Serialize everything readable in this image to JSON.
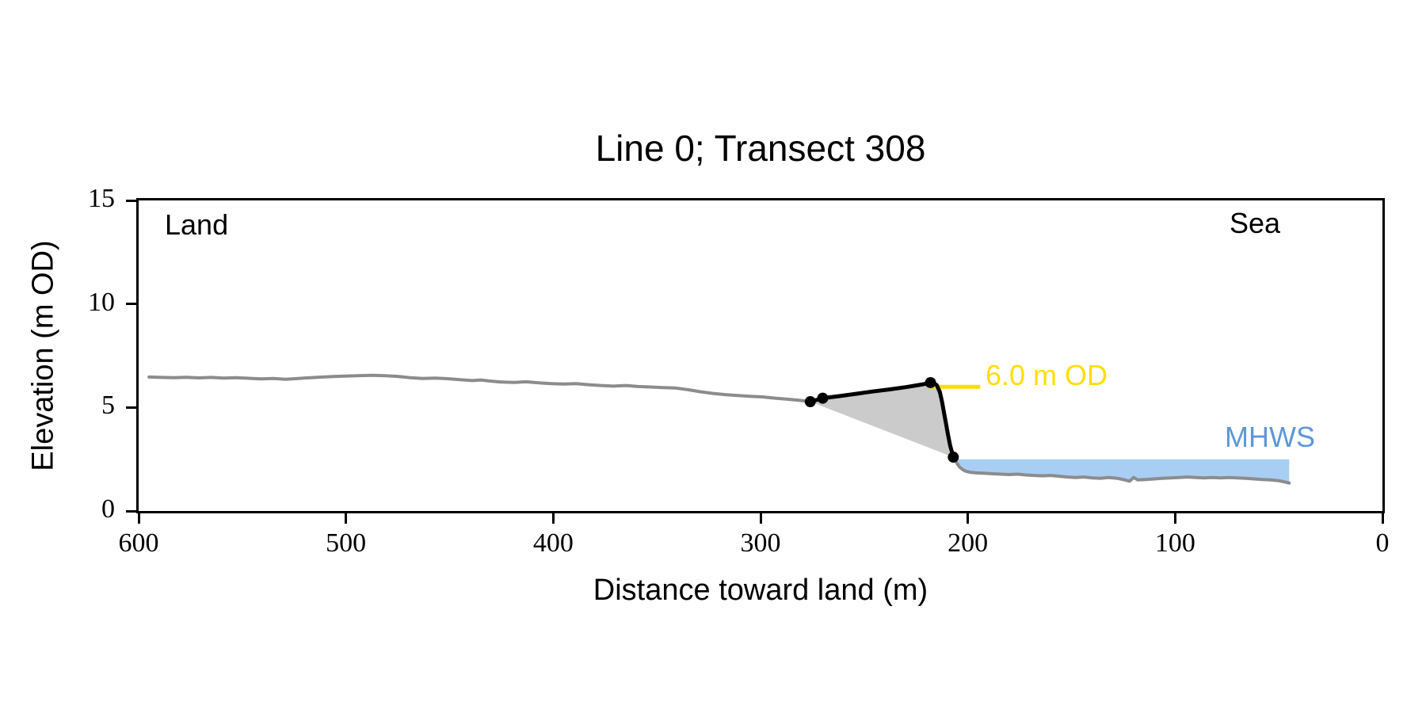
{
  "chart_data": {
    "type": "line",
    "title": "Line 0; Transect 308",
    "xlabel": "Distance toward land (m)",
    "ylabel": "Elevation (m OD)",
    "xlim": [
      600,
      0
    ],
    "ylim": [
      0,
      15
    ],
    "x_axis_reversed": true,
    "grid": false,
    "legend": "none",
    "x_ticks": [
      600,
      500,
      400,
      300,
      200,
      100,
      0
    ],
    "y_ticks": [
      0,
      5,
      10,
      15
    ],
    "annotations": {
      "land": {
        "text": "Land",
        "color": "#000000"
      },
      "sea": {
        "text": "Sea",
        "color": "#000000"
      },
      "crest_level": {
        "text": "6.0 m OD",
        "color": "#ffde00",
        "level_m": 6.0
      },
      "mhws": {
        "text": "MHWS",
        "color": "#5f97d5",
        "level_m": 2.5
      }
    },
    "series": [
      {
        "name": "ground-landward",
        "color": "#8c8c8c",
        "width": 4,
        "points": [
          [
            595,
            6.47
          ],
          [
            589,
            6.45
          ],
          [
            583,
            6.44
          ],
          [
            577,
            6.46
          ],
          [
            571,
            6.43
          ],
          [
            565,
            6.45
          ],
          [
            559,
            6.42
          ],
          [
            553,
            6.44
          ],
          [
            547,
            6.41
          ],
          [
            541,
            6.38
          ],
          [
            535,
            6.4
          ],
          [
            529,
            6.36
          ],
          [
            523,
            6.4
          ],
          [
            517,
            6.44
          ],
          [
            511,
            6.47
          ],
          [
            505,
            6.5
          ],
          [
            499,
            6.52
          ],
          [
            493,
            6.54
          ],
          [
            487,
            6.55
          ],
          [
            481,
            6.53
          ],
          [
            475,
            6.5
          ],
          [
            469,
            6.44
          ],
          [
            463,
            6.4
          ],
          [
            457,
            6.42
          ],
          [
            451,
            6.39
          ],
          [
            445,
            6.34
          ],
          [
            439,
            6.3
          ],
          [
            435,
            6.33
          ],
          [
            431,
            6.28
          ],
          [
            425,
            6.23
          ],
          [
            419,
            6.21
          ],
          [
            413,
            6.24
          ],
          [
            407,
            6.19
          ],
          [
            401,
            6.15
          ],
          [
            395,
            6.13
          ],
          [
            389,
            6.15
          ],
          [
            383,
            6.1
          ],
          [
            377,
            6.06
          ],
          [
            371,
            6.03
          ],
          [
            365,
            6.06
          ],
          [
            359,
            6.01
          ],
          [
            353,
            5.99
          ],
          [
            347,
            5.96
          ],
          [
            341,
            5.94
          ],
          [
            335,
            5.86
          ],
          [
            329,
            5.76
          ],
          [
            323,
            5.68
          ],
          [
            317,
            5.62
          ],
          [
            311,
            5.58
          ],
          [
            305,
            5.54
          ],
          [
            299,
            5.51
          ],
          [
            293,
            5.45
          ],
          [
            287,
            5.4
          ],
          [
            281,
            5.34
          ],
          [
            276,
            5.28
          ]
        ]
      },
      {
        "name": "defence-profile",
        "color": "#000000",
        "width": 5,
        "points": [
          [
            276,
            5.28
          ],
          [
            270,
            5.45
          ],
          [
            262,
            5.55
          ],
          [
            254,
            5.66
          ],
          [
            246,
            5.77
          ],
          [
            238,
            5.87
          ],
          [
            230,
            5.98
          ],
          [
            224,
            6.08
          ],
          [
            220,
            6.15
          ],
          [
            218,
            6.2
          ],
          [
            216.5,
            6.18
          ],
          [
            215,
            6.08
          ],
          [
            213.5,
            5.75
          ],
          [
            212.5,
            5.3
          ],
          [
            211.5,
            4.75
          ],
          [
            210.5,
            4.2
          ],
          [
            209.5,
            3.65
          ],
          [
            208.5,
            3.15
          ],
          [
            207.5,
            2.8
          ],
          [
            207,
            2.6
          ]
        ]
      },
      {
        "name": "ground-seaward",
        "color": "#8c8c8c",
        "width": 4,
        "points": [
          [
            207,
            2.6
          ],
          [
            205.5,
            2.35
          ],
          [
            204,
            2.12
          ],
          [
            202.5,
            2.0
          ],
          [
            201,
            1.92
          ],
          [
            199,
            1.87
          ],
          [
            196,
            1.84
          ],
          [
            192,
            1.82
          ],
          [
            188,
            1.8
          ],
          [
            184,
            1.78
          ],
          [
            180,
            1.76
          ],
          [
            176,
            1.78
          ],
          [
            172,
            1.74
          ],
          [
            168,
            1.72
          ],
          [
            164,
            1.7
          ],
          [
            160,
            1.72
          ],
          [
            156,
            1.68
          ],
          [
            152,
            1.64
          ],
          [
            148,
            1.62
          ],
          [
            144,
            1.64
          ],
          [
            140,
            1.6
          ],
          [
            136,
            1.58
          ],
          [
            132,
            1.62
          ],
          [
            128,
            1.58
          ],
          [
            125,
            1.52
          ],
          [
            122,
            1.44
          ],
          [
            120,
            1.62
          ],
          [
            118,
            1.5
          ],
          [
            114,
            1.52
          ],
          [
            110,
            1.55
          ],
          [
            106,
            1.58
          ],
          [
            102,
            1.6
          ],
          [
            98,
            1.62
          ],
          [
            94,
            1.64
          ],
          [
            90,
            1.62
          ],
          [
            86,
            1.6
          ],
          [
            82,
            1.62
          ],
          [
            78,
            1.6
          ],
          [
            74,
            1.62
          ],
          [
            70,
            1.6
          ],
          [
            66,
            1.58
          ],
          [
            62,
            1.55
          ],
          [
            58,
            1.52
          ],
          [
            54,
            1.5
          ],
          [
            50,
            1.46
          ],
          [
            47,
            1.4
          ],
          [
            45,
            1.35
          ]
        ]
      }
    ],
    "markers": {
      "name": "defence-nodes",
      "color": "#000000",
      "radius": 7,
      "points": [
        [
          276,
          5.28
        ],
        [
          270,
          5.45
        ],
        [
          218,
          6.2
        ],
        [
          207,
          2.6
        ]
      ]
    },
    "reference_line": {
      "name": "crest-level-line",
      "color": "#ffde00",
      "width": 5,
      "level": 6.0,
      "x_from": 218,
      "x_to": 194
    },
    "fills": [
      {
        "name": "defence-wedge",
        "color": "#cbcbcb",
        "mode": "close-polygon",
        "source": "defence-profile"
      },
      {
        "name": "mhws-water",
        "color": "#a9cef4",
        "mode": "fill-to-level",
        "source": "ground-seaward",
        "level": 2.5,
        "x_from": 205,
        "x_to": 45
      }
    ]
  }
}
